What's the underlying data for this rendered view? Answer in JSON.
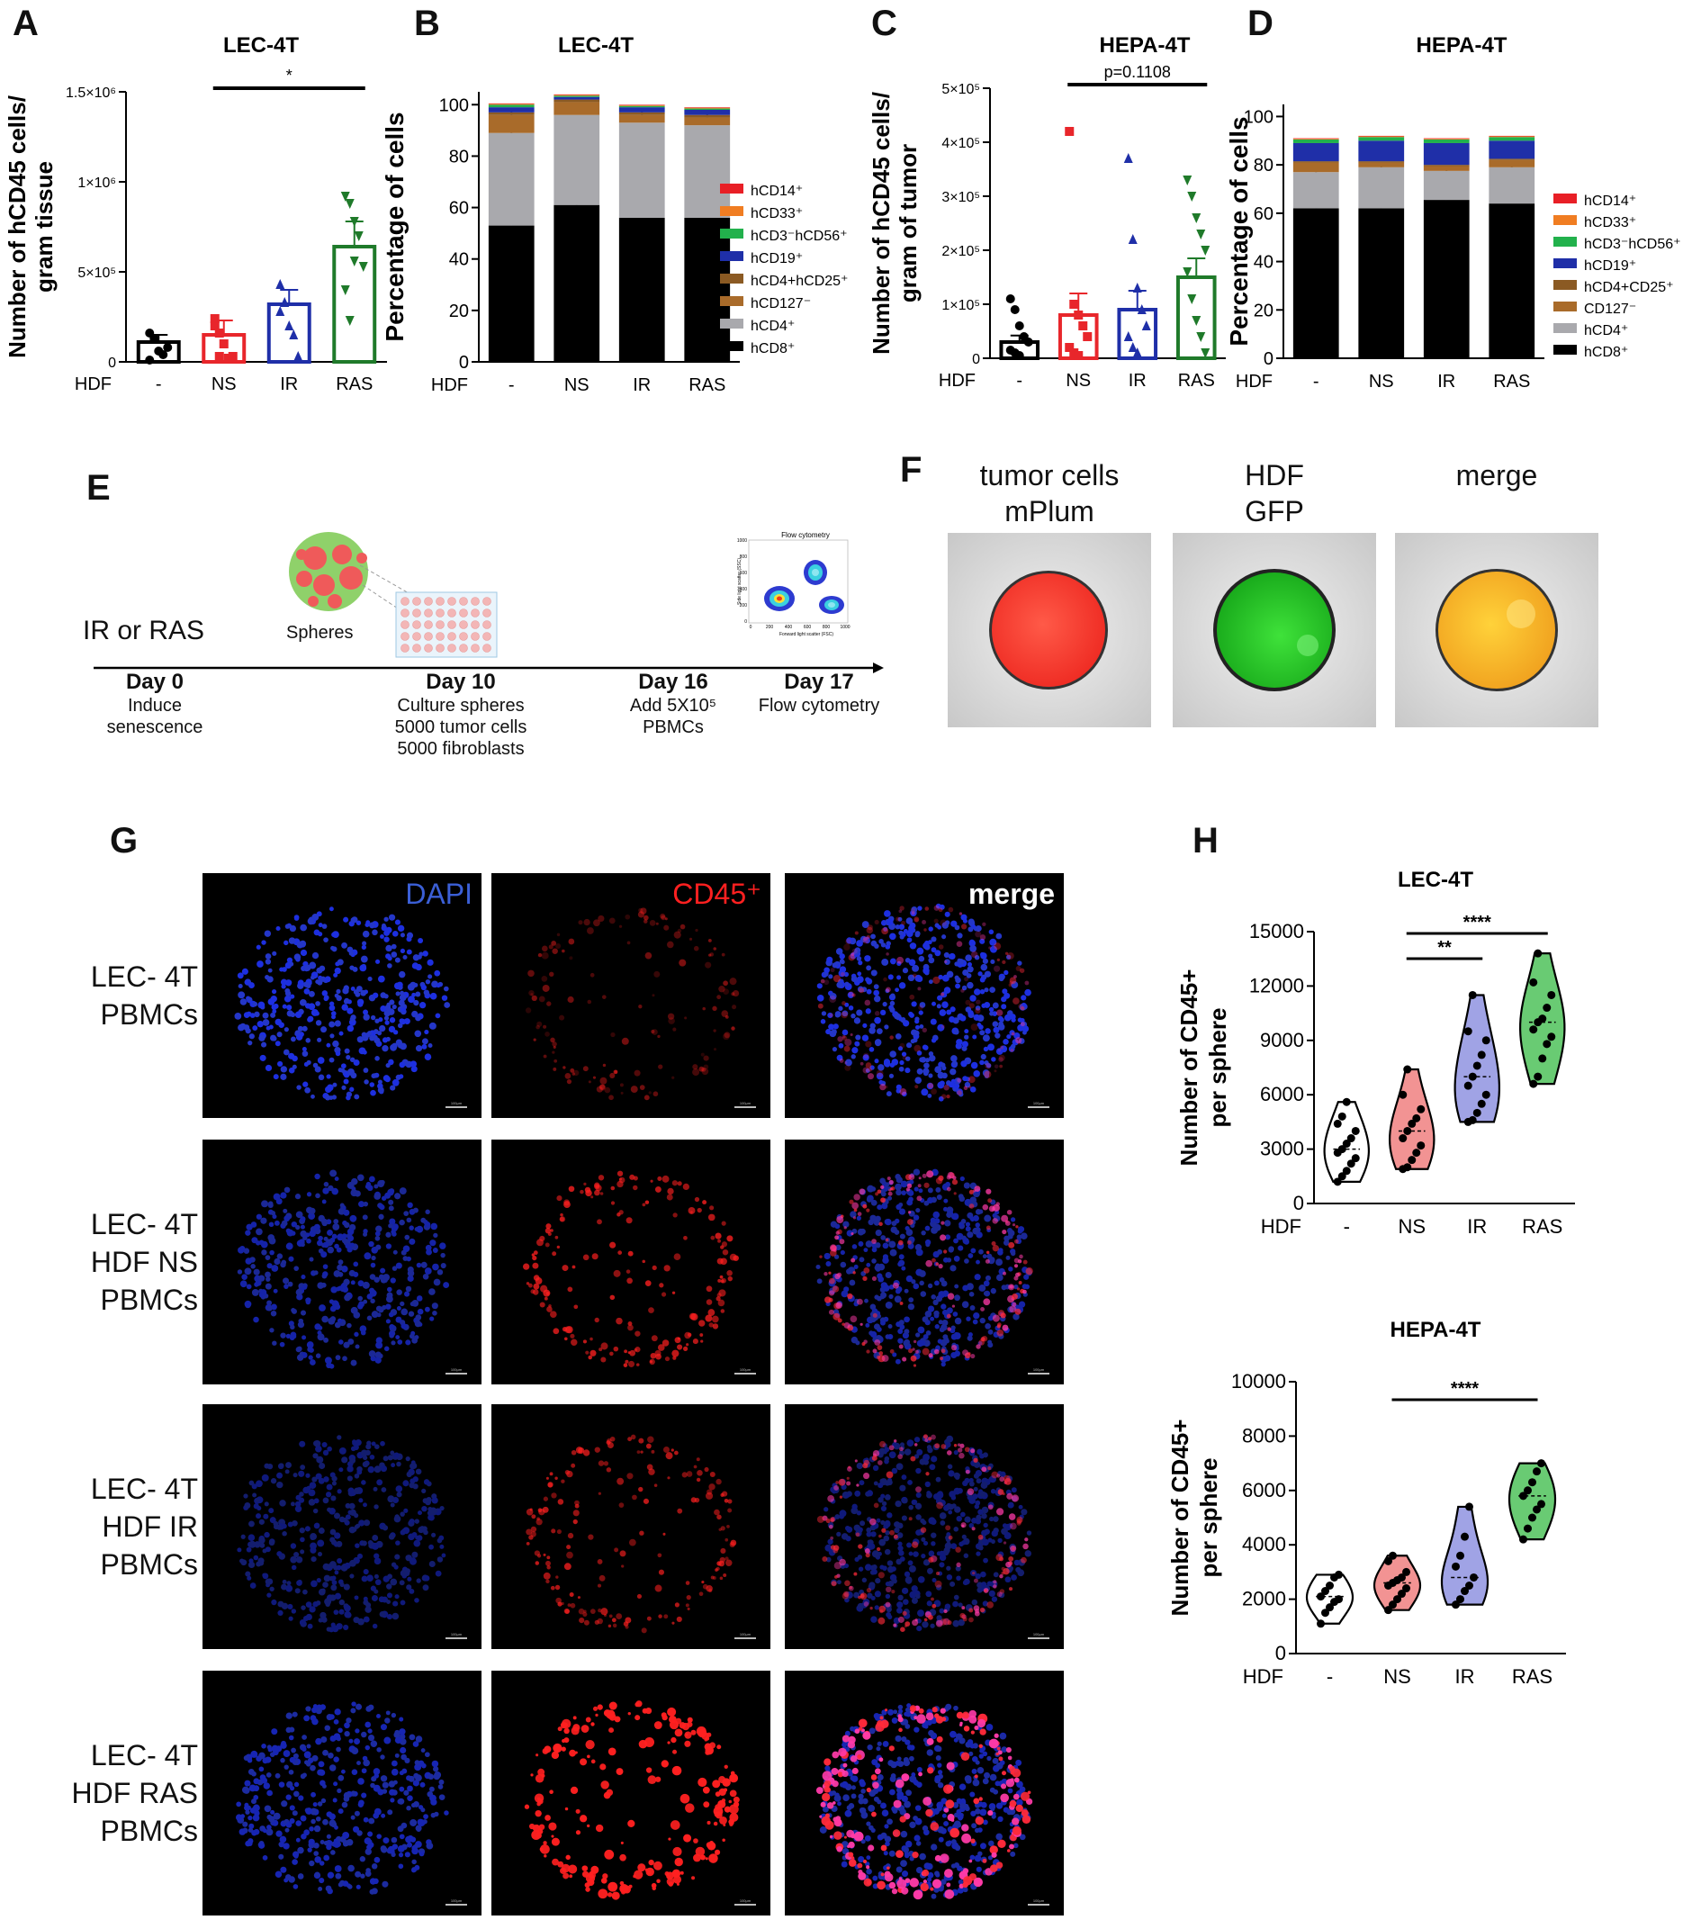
{
  "panels": {
    "A": {
      "letter": "A",
      "chart_data": {
        "type": "bar",
        "title": "LEC-4T",
        "ylabel_lines": [
          "Number of hCD45 cells/",
          "gram tissue"
        ],
        "x_prefix": "HDF",
        "categories": [
          "-",
          "NS",
          "IR",
          "RAS"
        ],
        "values": [
          110000,
          150000,
          320000,
          640000
        ],
        "errors": [
          40000,
          80000,
          80000,
          140000
        ],
        "colors": [
          "#000000",
          "#e8262b",
          "#1f2fa8",
          "#1f7a2a"
        ],
        "points": [
          [
            160000,
            130000,
            60000,
            40000,
            80000,
            10000
          ],
          [
            240000,
            160000,
            100000,
            20000,
            30000,
            200000,
            30000
          ],
          [
            430000,
            330000,
            200000,
            150000,
            30000,
            280000
          ],
          [
            920000,
            880000,
            780000,
            700000,
            530000,
            400000,
            230000,
            560000
          ]
        ],
        "marker": [
          "circle",
          "square",
          "triangle",
          "triangle-down"
        ],
        "ylim": [
          0,
          1500000
        ],
        "yticks": [
          0,
          500000,
          1000000,
          1500000
        ],
        "ytick_labels": [
          "0",
          "5×10⁵",
          "1×10⁶",
          "1.5×10⁶"
        ],
        "sig": {
          "from": 1,
          "to": 3,
          "label": "*"
        }
      }
    },
    "B": {
      "letter": "B",
      "chart_data": {
        "type": "bar",
        "stacked": true,
        "title": "LEC-4T",
        "ylabel": "Percentage of cells",
        "x_prefix": "HDF",
        "categories": [
          "-",
          "NS",
          "IR",
          "RAS"
        ],
        "ylim": [
          0,
          105
        ],
        "yticks": [
          0,
          20,
          40,
          60,
          80,
          100
        ],
        "series": [
          {
            "name": "hCD8⁺",
            "color": "#000000",
            "values": [
              53,
              61,
              56,
              56
            ],
            "err": [
              2,
              8,
              3,
              4
            ]
          },
          {
            "name": "hCD4⁺",
            "color": "#a9a9ad",
            "values": [
              36,
              35,
              37,
              36
            ],
            "err": [
              2,
              0,
              0,
              0
            ]
          },
          {
            "name": "hCD127⁻",
            "color": "#a96b2a",
            "values": [
              7,
              5,
              3,
              3
            ],
            "err": [
              2,
              0,
              2,
              3
            ]
          },
          {
            "name": "hCD4+hCD25⁺",
            "color": "#8b5a23",
            "values": [
              1,
              1,
              1,
              1
            ],
            "err": [
              0,
              0,
              0,
              0
            ]
          },
          {
            "name": "hCD19⁺",
            "color": "#1f2fa8",
            "values": [
              2,
              1,
              2,
              2
            ],
            "err": [
              0,
              0,
              0,
              0
            ]
          },
          {
            "name": "hCD3⁻hCD56⁺",
            "color": "#22b14c",
            "values": [
              1,
              0.5,
              0.5,
              0.5
            ],
            "err": [
              0,
              0,
              0,
              0
            ]
          },
          {
            "name": "hCD33⁺",
            "color": "#f07d22",
            "values": [
              0.3,
              0.3,
              0.3,
              0.3
            ],
            "err": [
              0,
              0,
              0,
              0
            ]
          },
          {
            "name": "hCD14⁺",
            "color": "#e81f26",
            "values": [
              0.2,
              0.2,
              0.2,
              0.2
            ],
            "err": [
              0,
              0,
              0,
              0
            ]
          }
        ]
      }
    },
    "C": {
      "letter": "C",
      "chart_data": {
        "type": "bar",
        "title": "HEPA-4T",
        "ylabel_lines": [
          "Number of hCD45 cells/",
          "gram of tumor"
        ],
        "x_prefix": "HDF",
        "categories": [
          "-",
          "NS",
          "IR",
          "RAS"
        ],
        "values": [
          30000,
          80000,
          90000,
          150000
        ],
        "errors": [
          12000,
          40000,
          35000,
          35000
        ],
        "colors": [
          "#000000",
          "#e8262b",
          "#1f2fa8",
          "#1f7a2a"
        ],
        "points": [
          [
            110000,
            90000,
            60000,
            40000,
            30000,
            15000,
            10000,
            5000
          ],
          [
            420000,
            100000,
            80000,
            60000,
            40000,
            20000,
            10000,
            5000
          ],
          [
            370000,
            220000,
            130000,
            90000,
            60000,
            40000,
            20000,
            10000
          ],
          [
            330000,
            300000,
            260000,
            230000,
            200000,
            160000,
            110000,
            70000,
            40000,
            10000
          ]
        ],
        "marker": [
          "circle",
          "square",
          "triangle",
          "triangle-down"
        ],
        "ylim": [
          0,
          500000
        ],
        "yticks": [
          0,
          100000,
          200000,
          300000,
          400000,
          500000
        ],
        "ytick_labels": [
          "0",
          "1×10⁵",
          "2×10⁵",
          "3×10⁵",
          "4×10⁵",
          "5×10⁵"
        ],
        "sig": {
          "from": 1,
          "to": 3,
          "label": "p=0.1108"
        }
      }
    },
    "D": {
      "letter": "D",
      "chart_data": {
        "type": "bar",
        "stacked": true,
        "title": "HEPA-4T",
        "ylabel": "Percentage of cells",
        "x_prefix": "HDF",
        "categories": [
          "-",
          "NS",
          "IR",
          "RAS"
        ],
        "ylim": [
          0,
          105
        ],
        "yticks": [
          0,
          20,
          40,
          60,
          80,
          100
        ],
        "series": [
          {
            "name": "hCD8⁺",
            "color": "#000000",
            "values": [
              62,
              62,
              65.5,
              64
            ],
            "err": [
              2,
              1.5,
              1.5,
              1
            ]
          },
          {
            "name": "hCD4⁺",
            "color": "#a9a9ad",
            "values": [
              15,
              17,
              12,
              15
            ],
            "err": [
              1,
              1,
              1,
              1
            ]
          },
          {
            "name": "CD127⁻",
            "color": "#a96b2a",
            "values": [
              4,
              2,
              2,
              3
            ],
            "err": [
              0,
              0,
              0,
              0
            ]
          },
          {
            "name": "hCD4+CD25⁺",
            "color": "#8b5a23",
            "values": [
              0.5,
              0.5,
              0.5,
              0.5
            ],
            "err": [
              0,
              0,
              0,
              0
            ]
          },
          {
            "name": "hCD19⁺",
            "color": "#1f2fa8",
            "values": [
              7.5,
              8.5,
              9,
              7.5
            ],
            "err": [
              0,
              0,
              0,
              0
            ]
          },
          {
            "name": "hCD3⁻hCD56⁺",
            "color": "#22b14c",
            "values": [
              1.5,
              1.5,
              1.5,
              1.5
            ],
            "err": [
              0,
              0,
              0,
              0
            ]
          },
          {
            "name": "hCD33⁺",
            "color": "#f07d22",
            "values": [
              0.3,
              0.3,
              0.3,
              0.3
            ],
            "err": [
              0,
              0,
              0,
              0
            ]
          },
          {
            "name": "hCD14⁺",
            "color": "#e81f26",
            "values": [
              0.2,
              0.2,
              0.2,
              0.2
            ],
            "err": [
              0,
              0,
              0,
              0
            ]
          }
        ]
      }
    },
    "E": {
      "letter": "E",
      "treatment": "IR or RAS",
      "spheres_label": "Spheres",
      "flow_title": "Flow cytometry",
      "flow_ylabel": "Side light scatter (SSC)",
      "flow_xlabel": "Forward light scatter (FSC)",
      "flow_xticks": [
        "0",
        "200",
        "400",
        "600",
        "800",
        "1000"
      ],
      "flow_yticks": [
        "0",
        "200",
        "400",
        "600",
        "800",
        "1000"
      ],
      "steps": [
        {
          "day": "Day 0",
          "lines": [
            "Induce",
            "senescence"
          ]
        },
        {
          "day": "Day 10",
          "lines": [
            "Culture spheres",
            "5000 tumor cells",
            "5000 fibroblasts"
          ]
        },
        {
          "day": "Day 16",
          "lines": [
            "Add  5X10⁵",
            "PBMCs"
          ]
        },
        {
          "day": "Day 17",
          "lines": [
            "Flow cytometry"
          ]
        }
      ]
    },
    "F": {
      "letter": "F",
      "columns": [
        {
          "lines": [
            "tumor cells",
            "mPlum"
          ]
        },
        {
          "lines": [
            "HDF",
            "GFP"
          ]
        },
        {
          "lines": [
            "merge"
          ]
        }
      ]
    },
    "G": {
      "letter": "G",
      "columns": [
        {
          "label": "DAPI",
          "color": "#3b5fd6"
        },
        {
          "label": "CD45⁺",
          "color": "#ff2020"
        },
        {
          "label": "merge",
          "color": "#ffffff"
        }
      ],
      "rows": [
        {
          "lines": [
            "LEC- 4T",
            "PBMCs"
          ]
        },
        {
          "lines": [
            "LEC- 4T",
            "HDF NS",
            "PBMCs"
          ]
        },
        {
          "lines": [
            "LEC- 4T",
            "HDF IR",
            "PBMCs"
          ]
        },
        {
          "lines": [
            "LEC- 4T",
            "HDF RAS",
            "PBMCs"
          ]
        }
      ],
      "scalebar": "100μm"
    },
    "H": {
      "letter": "H",
      "charts": [
        {
          "chart_data": {
            "type": "violin",
            "title": "LEC-4T",
            "ylabel_lines": [
              "Number of CD45+",
              "per sphere"
            ],
            "x_prefix": "HDF",
            "categories": [
              "-",
              "NS",
              "IR",
              "RAS"
            ],
            "colors": [
              "#ffffff",
              "#f08080",
              "#8f93e0",
              "#4fc25a"
            ],
            "points": [
              [
                5600,
                4800,
                4400,
                4000,
                3600,
                3300,
                3000,
                2800,
                2500,
                2200,
                1800,
                1500,
                1200
              ],
              [
                7400,
                6000,
                5200,
                4700,
                4400,
                4000,
                3600,
                3200,
                2800,
                2400,
                2000,
                1900
              ],
              [
                11500,
                9500,
                9000,
                8200,
                7600,
                7000,
                6500,
                6000,
                5500,
                5000,
                4600,
                4500
              ],
              [
                13800,
                12200,
                11500,
                10800,
                10200,
                10000,
                9600,
                9200,
                8800,
                8000,
                7000,
                6600
              ]
            ],
            "ylim": [
              0,
              15000
            ],
            "yticks": [
              0,
              3000,
              6000,
              9000,
              12000,
              15000
            ],
            "sigs": [
              {
                "from": 1,
                "to": 2,
                "label": "**"
              },
              {
                "from": 1,
                "to": 3,
                "label": "****"
              }
            ]
          }
        },
        {
          "chart_data": {
            "type": "violin",
            "title": "HEPA-4T",
            "ylabel_lines": [
              "Number of CD45+",
              "per sphere"
            ],
            "x_prefix": "HDF",
            "categories": [
              "-",
              "NS",
              "IR",
              "RAS"
            ],
            "colors": [
              "#ffffff",
              "#f08080",
              "#8f93e0",
              "#4fc25a"
            ],
            "points": [
              [
                2900,
                2800,
                2500,
                2300,
                2100,
                2000,
                1900,
                1700,
                1500,
                1100
              ],
              [
                3600,
                3400,
                3000,
                2800,
                2700,
                2600,
                2500,
                2400,
                2200,
                2000,
                1800,
                1600
              ],
              [
                5400,
                4300,
                3600,
                3200,
                2800,
                2500,
                2300,
                2000,
                1800
              ],
              [
                7000,
                6700,
                6300,
                6000,
                5800,
                5500,
                5300,
                5000,
                4600,
                4200
              ]
            ],
            "ylim": [
              0,
              10000
            ],
            "yticks": [
              0,
              2000,
              4000,
              6000,
              8000,
              10000
            ],
            "sigs": [
              {
                "from": 1,
                "to": 3,
                "label": "****"
              }
            ]
          }
        }
      ]
    }
  }
}
